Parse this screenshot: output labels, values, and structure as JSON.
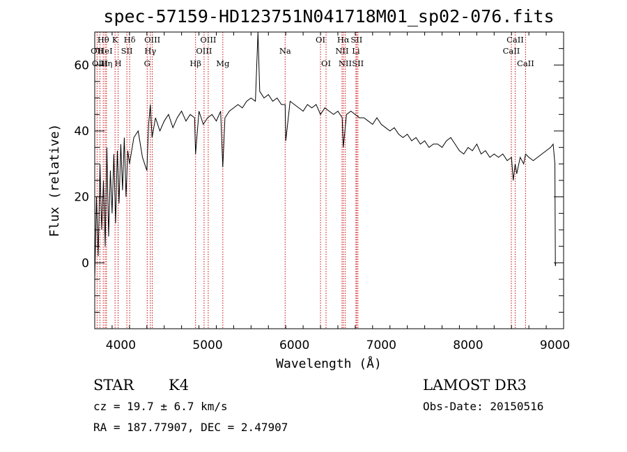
{
  "chart_data": {
    "type": "line",
    "title": "spec-57159-HD123751N041718M01_sp02-076.fits",
    "xlabel": "Wavelength (Å)",
    "ylabel": "Flux (relative)",
    "xlim": [
      3700,
      9100
    ],
    "ylim": [
      -20,
      70
    ],
    "xticks": [
      4000,
      5000,
      6000,
      7000,
      8000,
      9000
    ],
    "xtick_labels": [
      "4000",
      "5000",
      "6000",
      "7000",
      "8000",
      "9000"
    ],
    "yticks": [
      0,
      20,
      40,
      60
    ],
    "ytick_labels": [
      "0",
      "20",
      "40",
      "60"
    ],
    "x_minor_step": 200,
    "y_minor_step": 5,
    "grid": false,
    "spectrum": {
      "name": "flux",
      "x": [
        3700,
        3720,
        3740,
        3760,
        3780,
        3800,
        3820,
        3840,
        3860,
        3880,
        3900,
        3920,
        3940,
        3960,
        3980,
        4000,
        4020,
        4040,
        4060,
        4080,
        4100,
        4150,
        4200,
        4250,
        4300,
        4320,
        4340,
        4360,
        4400,
        4450,
        4500,
        4550,
        4600,
        4650,
        4700,
        4750,
        4800,
        4850,
        4861,
        4900,
        4950,
        5000,
        5050,
        5100,
        5150,
        5175,
        5200,
        5250,
        5300,
        5350,
        5400,
        5450,
        5500,
        5550,
        5580,
        5600,
        5650,
        5700,
        5750,
        5800,
        5850,
        5893,
        5900,
        5950,
        6000,
        6050,
        6100,
        6150,
        6200,
        6250,
        6300,
        6350,
        6400,
        6450,
        6500,
        6550,
        6563,
        6600,
        6650,
        6700,
        6750,
        6800,
        6850,
        6900,
        6950,
        7000,
        7050,
        7100,
        7150,
        7200,
        7250,
        7300,
        7350,
        7400,
        7450,
        7500,
        7550,
        7600,
        7650,
        7700,
        7750,
        7800,
        7850,
        7900,
        7950,
        8000,
        8050,
        8100,
        8150,
        8200,
        8250,
        8300,
        8350,
        8400,
        8450,
        8500,
        8520,
        8542,
        8560,
        8600,
        8640,
        8662,
        8700,
        8750,
        8800,
        8850,
        8900,
        8950,
        8980,
        9000,
        9005,
        9010
      ],
      "y": [
        -5,
        20,
        2,
        30,
        10,
        25,
        5,
        35,
        8,
        28,
        15,
        33,
        12,
        34,
        18,
        36,
        22,
        38,
        20,
        34,
        30,
        38,
        40,
        32,
        28,
        42,
        48,
        38,
        44,
        40,
        43,
        45,
        41,
        44,
        46,
        43,
        45,
        44,
        33,
        46,
        42,
        44,
        45,
        43,
        46,
        29,
        44,
        46,
        47,
        48,
        47,
        49,
        50,
        49,
        70,
        52,
        50,
        51,
        49,
        50,
        48,
        48,
        37,
        49,
        48,
        47,
        46,
        48,
        47,
        48,
        45,
        47,
        46,
        45,
        46,
        44,
        35,
        45,
        46,
        45,
        44,
        44,
        43,
        42,
        44,
        42,
        41,
        40,
        41,
        39,
        38,
        39,
        37,
        38,
        36,
        37,
        35,
        36,
        36,
        35,
        37,
        38,
        36,
        34,
        33,
        35,
        34,
        36,
        33,
        34,
        32,
        33,
        32,
        33,
        31,
        32,
        25,
        30,
        27,
        32,
        30,
        33,
        32,
        31,
        32,
        33,
        34,
        35,
        36,
        30,
        -1,
        0
      ]
    },
    "spectral_lines": [
      {
        "name": "Hθ",
        "wavelength": 3798,
        "row": 1
      },
      {
        "name": "OII",
        "wavelength": 3727,
        "row": 2
      },
      {
        "name": "OIII",
        "wavelength": 3760,
        "row": 3
      },
      {
        "name": "HeI",
        "wavelength": 3820,
        "row": 2
      },
      {
        "name": "Hη",
        "wavelength": 3835,
        "row": 3
      },
      {
        "name": "K",
        "wavelength": 3934,
        "row": 1
      },
      {
        "name": "SII",
        "wavelength": 4070,
        "row": 2
      },
      {
        "name": "H",
        "wavelength": 3969,
        "row": 3
      },
      {
        "name": "Hδ",
        "wavelength": 4102,
        "row": 1
      },
      {
        "name": "OIII",
        "wavelength": 4363,
        "row": 1
      },
      {
        "name": "Hγ",
        "wavelength": 4340,
        "row": 2
      },
      {
        "name": "G",
        "wavelength": 4304,
        "row": 3
      },
      {
        "name": "OIII",
        "wavelength": 5007,
        "row": 1
      },
      {
        "name": "OIII",
        "wavelength": 4959,
        "row": 2
      },
      {
        "name": "Hβ",
        "wavelength": 4861,
        "row": 3
      },
      {
        "name": "Mg",
        "wavelength": 5175,
        "row": 3
      },
      {
        "name": "Na",
        "wavelength": 5893,
        "row": 2
      },
      {
        "name": "OI",
        "wavelength": 6300,
        "row": 1
      },
      {
        "name": "OI",
        "wavelength": 6364,
        "row": 3
      },
      {
        "name": "Hα",
        "wavelength": 6563,
        "row": 1
      },
      {
        "name": "SII",
        "wavelength": 6716,
        "row": 1
      },
      {
        "name": "NII",
        "wavelength": 6548,
        "row": 2
      },
      {
        "name": "Li",
        "wavelength": 6708,
        "row": 2
      },
      {
        "name": "NII",
        "wavelength": 6584,
        "row": 3
      },
      {
        "name": "SII",
        "wavelength": 6731,
        "row": 3
      },
      {
        "name": "CaII",
        "wavelength": 8542,
        "row": 1
      },
      {
        "name": "CaII",
        "wavelength": 8498,
        "row": 2
      },
      {
        "name": "CaII",
        "wavelength": 8662,
        "row": 3
      }
    ]
  },
  "info": {
    "class": "STAR",
    "subclass": "K4",
    "survey": "LAMOST DR3",
    "cz": "cz = 19.7 ± 6.7 km/s",
    "obs_date": "Obs-Date: 20150516",
    "coords": "RA = 187.77907, DEC =   2.47907"
  },
  "colors": {
    "axes": "#000000",
    "spectrum": "#000000",
    "line_marker": "#cc0000"
  }
}
